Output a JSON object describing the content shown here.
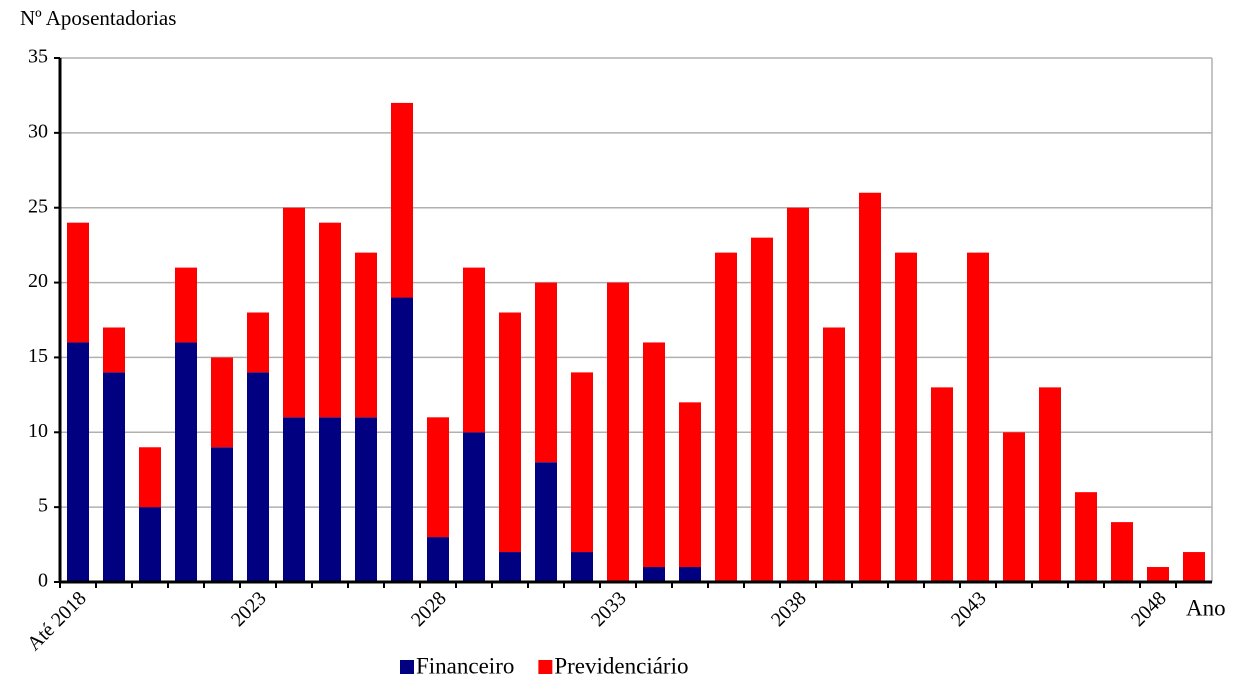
{
  "chart_data": {
    "type": "stacked-bar",
    "y_label": "Nº Aposentadorias",
    "x_label": "Ano",
    "categories": [
      "Até 2018",
      null,
      null,
      null,
      null,
      "2023",
      null,
      null,
      null,
      null,
      "2028",
      null,
      null,
      null,
      null,
      "2033",
      null,
      null,
      null,
      null,
      "2038",
      null,
      null,
      null,
      null,
      "2043",
      null,
      null,
      null,
      null,
      "2048",
      null
    ],
    "series": [
      {
        "name": "Financeiro",
        "color": "#000080",
        "values": [
          16,
          14,
          5,
          16,
          9,
          14,
          11,
          11,
          11,
          19,
          3,
          10,
          2,
          8,
          2,
          0,
          1,
          1,
          0,
          0,
          0,
          0,
          0,
          0,
          0,
          0,
          0,
          0,
          0,
          0,
          0,
          0
        ]
      },
      {
        "name": "Previdenciário",
        "color": "#ff0000",
        "values": [
          8,
          3,
          4,
          5,
          6,
          4,
          14,
          13,
          11,
          13,
          8,
          11,
          16,
          12,
          12,
          20,
          15,
          11,
          22,
          23,
          25,
          17,
          26,
          22,
          13,
          22,
          10,
          13,
          6,
          4,
          1,
          2
        ]
      }
    ],
    "ylim": [
      0,
      35
    ],
    "yticks": [
      0,
      5,
      10,
      15,
      20,
      25,
      30,
      35
    ],
    "grid": true
  }
}
